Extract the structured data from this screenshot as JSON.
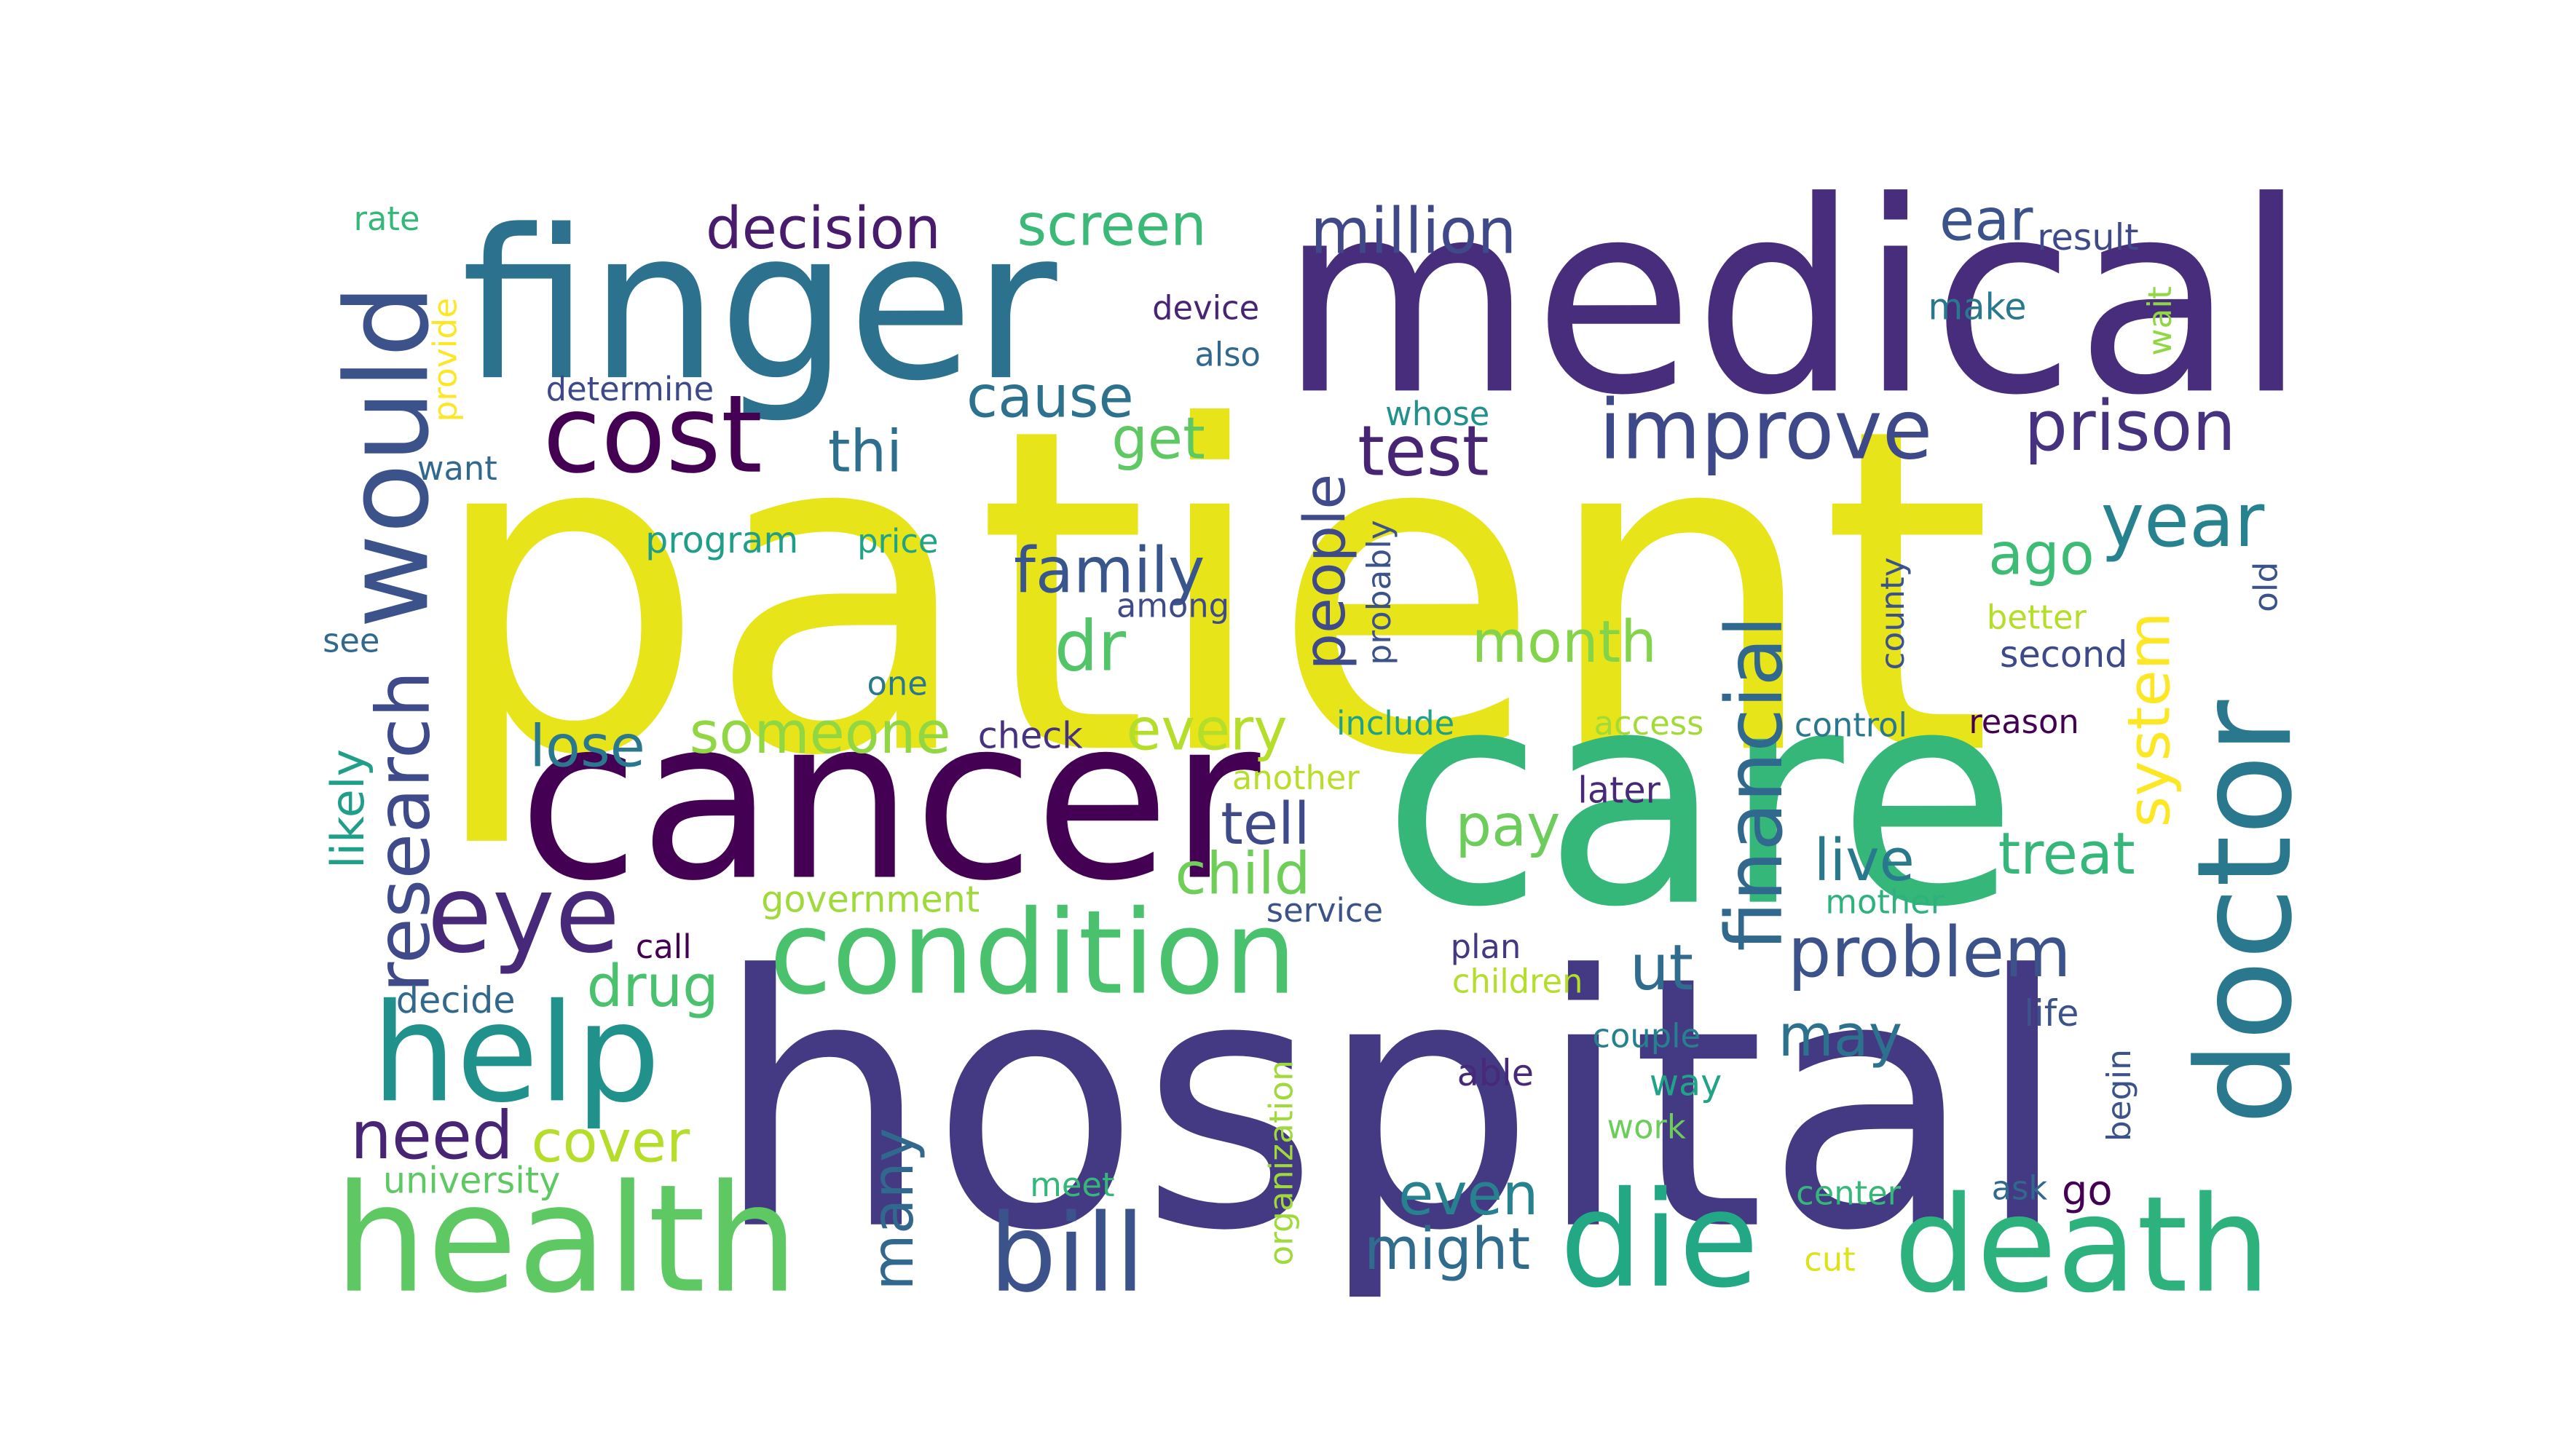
{
  "word_cloud": {
    "words": [
      {
        "text": "patient",
        "color": "#e7e419"
      },
      {
        "text": "hospital",
        "color": "#443983"
      },
      {
        "text": "care",
        "color": "#35b779"
      },
      {
        "text": "medical",
        "color": "#472d7b"
      },
      {
        "text": "finger",
        "color": "#2c728e"
      },
      {
        "text": "cancer",
        "color": "#440154"
      },
      {
        "text": "doctor",
        "color": "#2a788e"
      },
      {
        "text": "health",
        "color": "#5ec962"
      },
      {
        "text": "condition",
        "color": "#4ac16d"
      },
      {
        "text": "would",
        "color": "#3b528b"
      },
      {
        "text": "death",
        "color": "#2db27d"
      },
      {
        "text": "die",
        "color": "#22a884"
      },
      {
        "text": "help",
        "color": "#21918c"
      },
      {
        "text": "cost",
        "color": "#440154"
      },
      {
        "text": "eye",
        "color": "#482878"
      },
      {
        "text": "bill",
        "color": "#3b528b"
      },
      {
        "text": "improve",
        "color": "#3e4989"
      },
      {
        "text": "financial",
        "color": "#31688e"
      },
      {
        "text": "prison",
        "color": "#46327e"
      },
      {
        "text": "research",
        "color": "#3e4a89"
      },
      {
        "text": "year",
        "color": "#26828e"
      },
      {
        "text": "problem",
        "color": "#3b528b"
      },
      {
        "text": "million",
        "color": "#3f4889"
      },
      {
        "text": "test",
        "color": "#482475"
      },
      {
        "text": "system",
        "color": "#fde725"
      },
      {
        "text": "decision",
        "color": "#481b6d"
      },
      {
        "text": "screen",
        "color": "#3aba76"
      },
      {
        "text": "family",
        "color": "#39568c"
      },
      {
        "text": "someone",
        "color": "#90d743"
      },
      {
        "text": "need",
        "color": "#482475"
      },
      {
        "text": "dr",
        "color": "#52c569"
      },
      {
        "text": "month",
        "color": "#84d44b"
      },
      {
        "text": "people",
        "color": "#3e4a89"
      },
      {
        "text": "cause",
        "color": "#2c718e"
      },
      {
        "text": "ear",
        "color": "#3b528b"
      },
      {
        "text": "every",
        "color": "#b5de2b"
      },
      {
        "text": "thi",
        "color": "#2e6e8e"
      },
      {
        "text": "get",
        "color": "#5ec962"
      },
      {
        "text": "many",
        "color": "#31688e"
      },
      {
        "text": "drug",
        "color": "#4ac16d"
      },
      {
        "text": "cover",
        "color": "#b5de2b"
      },
      {
        "text": "lose",
        "color": "#2a788e"
      },
      {
        "text": "might",
        "color": "#2f6c8e"
      },
      {
        "text": "even",
        "color": "#26828e"
      },
      {
        "text": "ut",
        "color": "#2f6c8e"
      },
      {
        "text": "treat",
        "color": "#35b779"
      },
      {
        "text": "ago",
        "color": "#3dbc74"
      },
      {
        "text": "pay",
        "color": "#6ccd5a"
      },
      {
        "text": "live",
        "color": "#29798e"
      },
      {
        "text": "child",
        "color": "#6ece58"
      },
      {
        "text": "tell",
        "color": "#3e4a89"
      },
      {
        "text": "may",
        "color": "#2c728e"
      },
      {
        "text": "likely",
        "color": "#1f9e89"
      },
      {
        "text": "university",
        "color": "#5ec962"
      },
      {
        "text": "government",
        "color": "#9fda3a"
      },
      {
        "text": "organization",
        "color": "#9fda3a"
      },
      {
        "text": "check",
        "color": "#46327e"
      },
      {
        "text": "service",
        "color": "#3b528b"
      },
      {
        "text": "include",
        "color": "#1fa188"
      },
      {
        "text": "access",
        "color": "#a2da37"
      },
      {
        "text": "control",
        "color": "#2a788e"
      },
      {
        "text": "reason",
        "color": "#440154"
      },
      {
        "text": "another",
        "color": "#b8de29"
      },
      {
        "text": "later",
        "color": "#482878"
      },
      {
        "text": "mother",
        "color": "#2db27d"
      },
      {
        "text": "plan",
        "color": "#453781"
      },
      {
        "text": "children",
        "color": "#b5de2b"
      },
      {
        "text": "couple",
        "color": "#27808e"
      },
      {
        "text": "way",
        "color": "#20a386"
      },
      {
        "text": "work",
        "color": "#6ccd5a"
      },
      {
        "text": "able",
        "color": "#482878"
      },
      {
        "text": "life",
        "color": "#3b528b"
      },
      {
        "text": "begin",
        "color": "#3b528b"
      },
      {
        "text": "center",
        "color": "#35b779"
      },
      {
        "text": "cut",
        "color": "#dde318"
      },
      {
        "text": "ask",
        "color": "#31688e"
      },
      {
        "text": "go",
        "color": "#440154"
      },
      {
        "text": "meet",
        "color": "#35b779"
      },
      {
        "text": "call",
        "color": "#440154"
      },
      {
        "text": "decide",
        "color": "#31688e"
      },
      {
        "text": "one",
        "color": "#2a788e"
      },
      {
        "text": "see",
        "color": "#31688e"
      },
      {
        "text": "among",
        "color": "#3e4a89"
      },
      {
        "text": "probably",
        "color": "#3b528b"
      },
      {
        "text": "program",
        "color": "#1f9e89"
      },
      {
        "text": "price",
        "color": "#20a386"
      },
      {
        "text": "want",
        "color": "#31688e"
      },
      {
        "text": "determine",
        "color": "#3e4989"
      },
      {
        "text": "provide",
        "color": "#fde725"
      },
      {
        "text": "rate",
        "color": "#35b779"
      },
      {
        "text": "device",
        "color": "#482475"
      },
      {
        "text": "also",
        "color": "#31688e"
      },
      {
        "text": "whose",
        "color": "#21918c"
      },
      {
        "text": "make",
        "color": "#2a788e"
      },
      {
        "text": "result",
        "color": "#3e4a89"
      },
      {
        "text": "wait",
        "color": "#90d743"
      },
      {
        "text": "county",
        "color": "#3b528b"
      },
      {
        "text": "old",
        "color": "#3b528b"
      },
      {
        "text": "better",
        "color": "#b5de2b"
      },
      {
        "text": "second",
        "color": "#3e4989"
      }
    ]
  }
}
